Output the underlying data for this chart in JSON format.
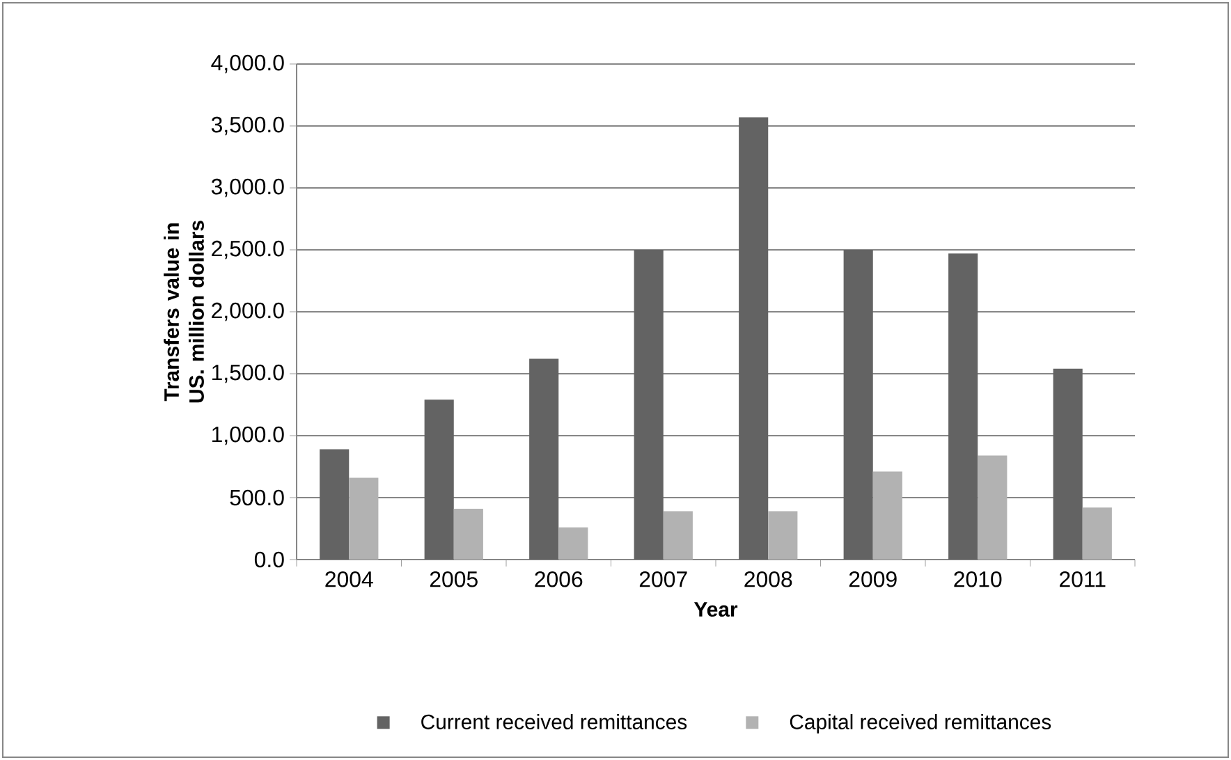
{
  "chart_data": {
    "type": "bar",
    "xlabel": "Year",
    "ylabel": "Transfers value in US. million dollars",
    "categories": [
      "2004",
      "2005",
      "2006",
      "2007",
      "2008",
      "2009",
      "2010",
      "2011"
    ],
    "series": [
      {
        "name": "Current received remittances",
        "color": "#636363",
        "values": [
          890,
          1290,
          1620,
          2500,
          3570,
          2500,
          2470,
          1540
        ]
      },
      {
        "name": "Capital received remittances",
        "color": "#b2b2b2",
        "values": [
          660,
          410,
          260,
          390,
          390,
          710,
          840,
          420
        ]
      }
    ],
    "ylim": [
      0,
      4000
    ],
    "yticks": [
      {
        "value": 0,
        "label": "0.0"
      },
      {
        "value": 500,
        "label": "500.0"
      },
      {
        "value": 1000,
        "label": "1,000.0"
      },
      {
        "value": 1500,
        "label": "1,500.0"
      },
      {
        "value": 2000,
        "label": "2,000.0"
      },
      {
        "value": 2500,
        "label": "2,500.0"
      },
      {
        "value": 3000,
        "label": "3,000.0"
      },
      {
        "value": 3500,
        "label": "3,500.0"
      },
      {
        "value": 4000,
        "label": "4,000.0"
      }
    ],
    "grid": "y",
    "legend": "bottom"
  }
}
